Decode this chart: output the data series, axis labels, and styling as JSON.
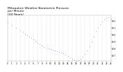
{
  "title": "Milwaukee Weather Barometric Pressure\nper Minute\n(24 Hours)",
  "title_fontsize": 3.2,
  "background_color": "#ffffff",
  "plot_bg_color": "#ffffff",
  "grid_color": "#aaaaaa",
  "dot_color": "#0000dd",
  "dot_size": 0.5,
  "xlim": [
    0,
    1440
  ],
  "ylim_min": 29.62,
  "ylim_max": 30.28,
  "x_ticks": [
    0,
    60,
    120,
    180,
    240,
    300,
    360,
    420,
    480,
    540,
    600,
    660,
    720,
    780,
    840,
    900,
    960,
    1020,
    1080,
    1140,
    1200,
    1260,
    1320,
    1380,
    1440
  ],
  "x_tick_labels": [
    "0",
    "1",
    "2",
    "3",
    "4",
    "5",
    "6",
    "7",
    "8",
    "9",
    "10",
    "11",
    "12",
    "13",
    "14",
    "15",
    "16",
    "17",
    "18",
    "19",
    "20",
    "21",
    "22",
    "23",
    "24"
  ],
  "y_ticks": [
    29.7,
    29.8,
    29.9,
    30.0,
    30.1,
    30.2
  ],
  "y_tick_labels": [
    "29.7",
    "29.8",
    "29.9",
    "30.0",
    "30.1",
    "30.2"
  ],
  "data_x": [
    0,
    60,
    120,
    180,
    210,
    240,
    270,
    300,
    330,
    360,
    390,
    420,
    450,
    480,
    510,
    540,
    570,
    600,
    630,
    660,
    690,
    720,
    750,
    780,
    810,
    840,
    870,
    900,
    930,
    960,
    990,
    1020,
    1050,
    1080,
    1110,
    1140,
    1170,
    1200,
    1230,
    1260,
    1290,
    1320,
    1350,
    1380,
    1410,
    1440
  ],
  "data_y": [
    30.18,
    30.14,
    30.1,
    30.06,
    30.04,
    30.01,
    29.99,
    29.97,
    29.95,
    29.93,
    29.91,
    29.88,
    29.86,
    29.84,
    29.82,
    29.81,
    29.8,
    29.79,
    29.78,
    29.77,
    29.76,
    29.75,
    29.74,
    29.73,
    29.71,
    29.69,
    29.67,
    29.65,
    29.63,
    29.62,
    29.63,
    29.65,
    29.68,
    29.72,
    29.77,
    29.83,
    29.9,
    29.97,
    30.05,
    30.1,
    30.15,
    30.19,
    30.22,
    30.24,
    30.25,
    30.23
  ]
}
